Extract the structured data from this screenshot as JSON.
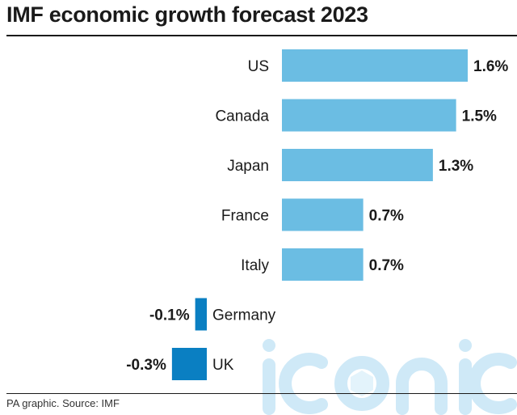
{
  "title": "IMF economic growth forecast 2023",
  "source": "PA graphic. Source: IMF",
  "watermark": {
    "text": "iconic",
    "color": "#cfe9f7"
  },
  "colors": {
    "positive": "#6bbde3",
    "negative": "#0a7fc2",
    "text": "#1a1a1a"
  },
  "chart_data": {
    "type": "bar",
    "orientation": "horizontal",
    "unit": "%",
    "categories": [
      "US",
      "Canada",
      "Japan",
      "France",
      "Italy",
      "Germany",
      "UK"
    ],
    "values": [
      1.6,
      1.5,
      1.3,
      0.7,
      0.7,
      -0.1,
      -0.3
    ],
    "labels": [
      "1.6%",
      "1.5%",
      "1.3%",
      "0.7%",
      "0.7%",
      "-0.1%",
      "-0.3%"
    ],
    "xlim": [
      -0.7,
      1.6
    ],
    "grid": false,
    "legend": "none"
  }
}
